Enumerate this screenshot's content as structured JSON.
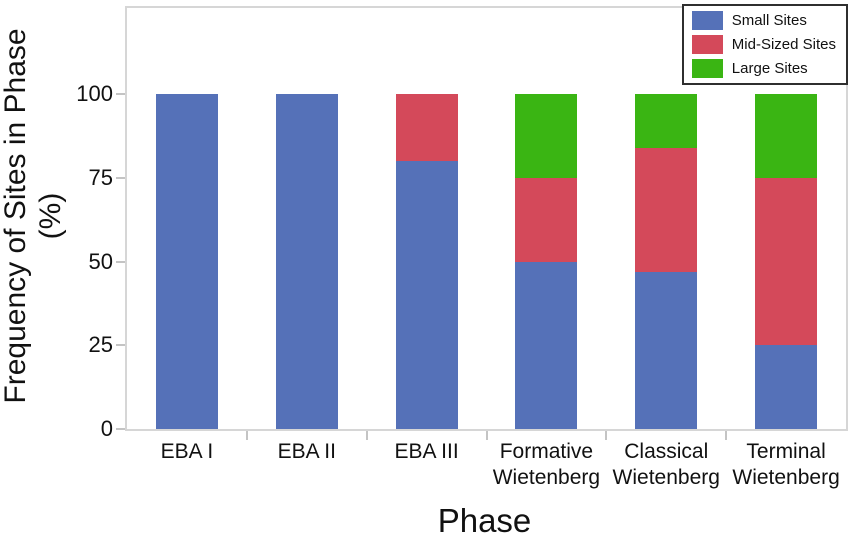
{
  "chart_data": {
    "type": "bar",
    "stacked": true,
    "title": "",
    "xlabel": "Phase",
    "ylabel": "Frequency of Sites in Phase (%)",
    "ylabel_lines": [
      "Frequency of Sites in Phase",
      "(%)"
    ],
    "categories": [
      "EBA I",
      "EBA II",
      "EBA III",
      "Formative Wietenberg",
      "Classical Wietenberg",
      "Terminal Wietenberg"
    ],
    "category_label_lines": [
      [
        "EBA I"
      ],
      [
        "EBA II"
      ],
      [
        "EBA III"
      ],
      [
        "Formative",
        "Wietenberg"
      ],
      [
        "Classical",
        "Wietenberg"
      ],
      [
        "Terminal",
        "Wietenberg"
      ]
    ],
    "series": [
      {
        "name": "Small Sites",
        "color": "#5571b8",
        "values": [
          100,
          100,
          80,
          50,
          47,
          25
        ]
      },
      {
        "name": "Mid-Sized Sites",
        "color": "#d4495a",
        "values": [
          0,
          0,
          20,
          25,
          37,
          50
        ]
      },
      {
        "name": "Large Sites",
        "color": "#3ab513",
        "values": [
          0,
          0,
          0,
          25,
          16,
          25
        ]
      }
    ],
    "yticks": [
      0,
      25,
      50,
      75,
      100
    ],
    "ylim": [
      0,
      125
    ],
    "grid": false,
    "legend_position": "top-right",
    "colors": {
      "plot_border": "#d6d6d6",
      "tick": "#c4c4c4",
      "text": "#111111",
      "legend_border": "#2f2f2f",
      "background": "#ffffff"
    }
  }
}
